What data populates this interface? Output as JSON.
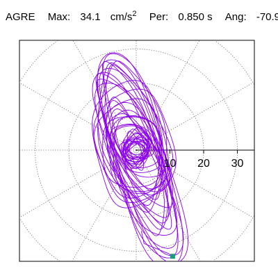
{
  "header": {
    "station": "AGRE",
    "max_label": "Max:",
    "max_value": "34.1",
    "max_unit": "cm/s",
    "max_unit_exp": "2",
    "per_label": "Per:",
    "per_value": "0.850 s",
    "ang_label": "Ang:",
    "ang_value": "-70.9"
  },
  "chart_data": {
    "type": "polar-orbit",
    "title": "AGRE",
    "radial_ticks": [
      10,
      20,
      30
    ],
    "radial_max": 40,
    "spoke_angles_deg": [
      0,
      30,
      60,
      90,
      120,
      150,
      180,
      210,
      240,
      270,
      300,
      330
    ],
    "grid": "dotted",
    "max_value": 34.1,
    "max_unit": "cm/s^2",
    "period_s": 0.85,
    "angle_deg": -70.9,
    "trace_color": "#8B00E8",
    "end_marker_color": "#1A9C78",
    "end_point": {
      "x": 10.8,
      "y": -31.5
    },
    "orbit_family": [
      {
        "a": 33,
        "b": 6.5,
        "cx": 1.2,
        "cy": -3.8,
        "ang": -70.9
      },
      {
        "a": 30,
        "b": 8.0,
        "cx": 0.6,
        "cy": -1.9,
        "ang": -73
      },
      {
        "a": 27,
        "b": 5.5,
        "cx": -0.5,
        "cy": 2.1,
        "ang": -68
      },
      {
        "a": 24,
        "b": 9.0,
        "cx": -1.3,
        "cy": 4.6,
        "ang": -76
      },
      {
        "a": 21,
        "b": 7.0,
        "cx": 0.3,
        "cy": -5.2,
        "ang": -66
      },
      {
        "a": 18,
        "b": 10.0,
        "cx": -1.0,
        "cy": 1.0,
        "ang": -80
      },
      {
        "a": 15,
        "b": 6.0,
        "cx": 0.8,
        "cy": 0.4,
        "ang": -60
      },
      {
        "a": 12,
        "b": 8.0,
        "cx": -0.4,
        "cy": -0.6,
        "ang": -85
      },
      {
        "a": 9,
        "b": 5.0,
        "cx": 0.2,
        "cy": 0.2,
        "ang": -50
      },
      {
        "a": 6,
        "b": 4.0,
        "cx": -0.2,
        "cy": 0.1,
        "ang": -95
      }
    ]
  }
}
